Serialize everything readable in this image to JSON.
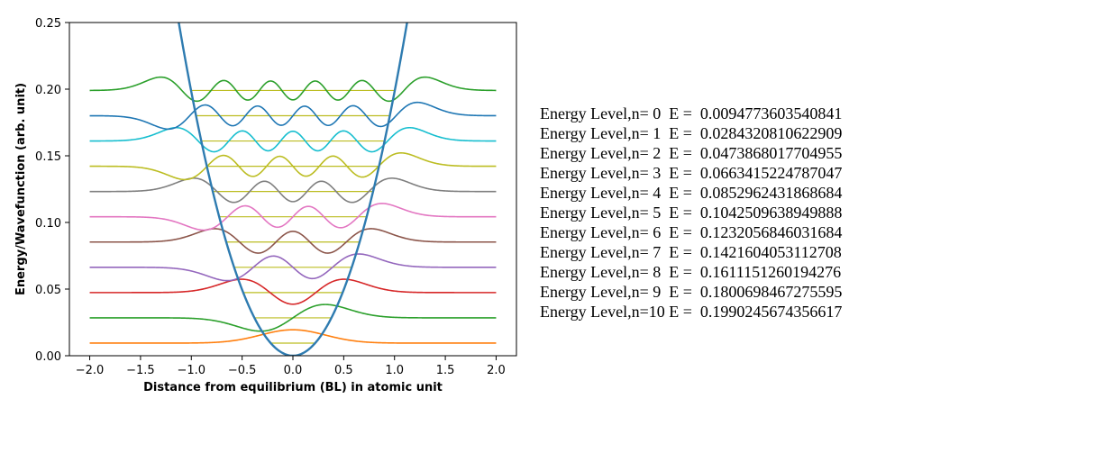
{
  "chart_data": {
    "type": "line",
    "title": "",
    "xlabel": "Distance from equilibrium (BL) in atomic unit",
    "ylabel": "Energy/Wavefunction (arb. unit)",
    "xlim": [
      -2.2,
      2.2
    ],
    "ylim": [
      0.0,
      0.25
    ],
    "xticks": [
      -2.0,
      -1.5,
      -1.0,
      -0.5,
      0.0,
      0.5,
      1.0,
      1.5,
      2.0
    ],
    "xtick_labels": [
      "−2.0",
      "−1.5",
      "−1.0",
      "−0.5",
      "0.0",
      "0.5",
      "1.0",
      "1.5",
      "2.0"
    ],
    "yticks": [
      0.0,
      0.05,
      0.1,
      0.15,
      0.2,
      0.25
    ],
    "ytick_labels": [
      "0.00",
      "0.05",
      "0.10",
      "0.15",
      "0.20",
      "0.25"
    ],
    "grid": false,
    "legend": "none",
    "potential": {
      "color": "#2e7bb0"
    },
    "level_line_color": "#bcbd22",
    "energy_levels": [
      {
        "n": 0,
        "E": 0.0094773603540841,
        "color": "#ff7f0e"
      },
      {
        "n": 1,
        "E": 0.0284320810622909,
        "color": "#2ca02c"
      },
      {
        "n": 2,
        "E": 0.0473868017704955,
        "color": "#d62728"
      },
      {
        "n": 3,
        "E": 0.0663415224787047,
        "color": "#9467bd"
      },
      {
        "n": 4,
        "E": 0.0852962431868684,
        "color": "#8c564b"
      },
      {
        "n": 5,
        "E": 0.1042509638949888,
        "color": "#e377c2"
      },
      {
        "n": 6,
        "E": 0.1232056846031684,
        "color": "#7f7f7f"
      },
      {
        "n": 7,
        "E": 0.1421604053112708,
        "color": "#bcbd22"
      },
      {
        "n": 8,
        "E": 0.1611151260194276,
        "color": "#17becf"
      },
      {
        "n": 9,
        "E": 0.1800698467275595,
        "color": "#1f77b4"
      },
      {
        "n": 10,
        "E": 0.1990245674356617,
        "color": "#2ca02c"
      }
    ]
  },
  "energy_list": [
    "Energy Level,n= 0  E =  0.0094773603540841",
    "Energy Level,n= 1  E =  0.0284320810622909",
    "Energy Level,n= 2  E =  0.0473868017704955",
    "Energy Level,n= 3  E =  0.0663415224787047",
    "Energy Level,n= 4  E =  0.0852962431868684",
    "Energy Level,n= 5  E =  0.1042509638949888",
    "Energy Level,n= 6  E =  0.1232056846031684",
    "Energy Level,n= 7  E =  0.1421604053112708",
    "Energy Level,n= 8  E =  0.1611151260194276",
    "Energy Level,n= 9  E =  0.1800698467275595",
    "Energy Level,n=10 E =  0.1990245674356617"
  ]
}
